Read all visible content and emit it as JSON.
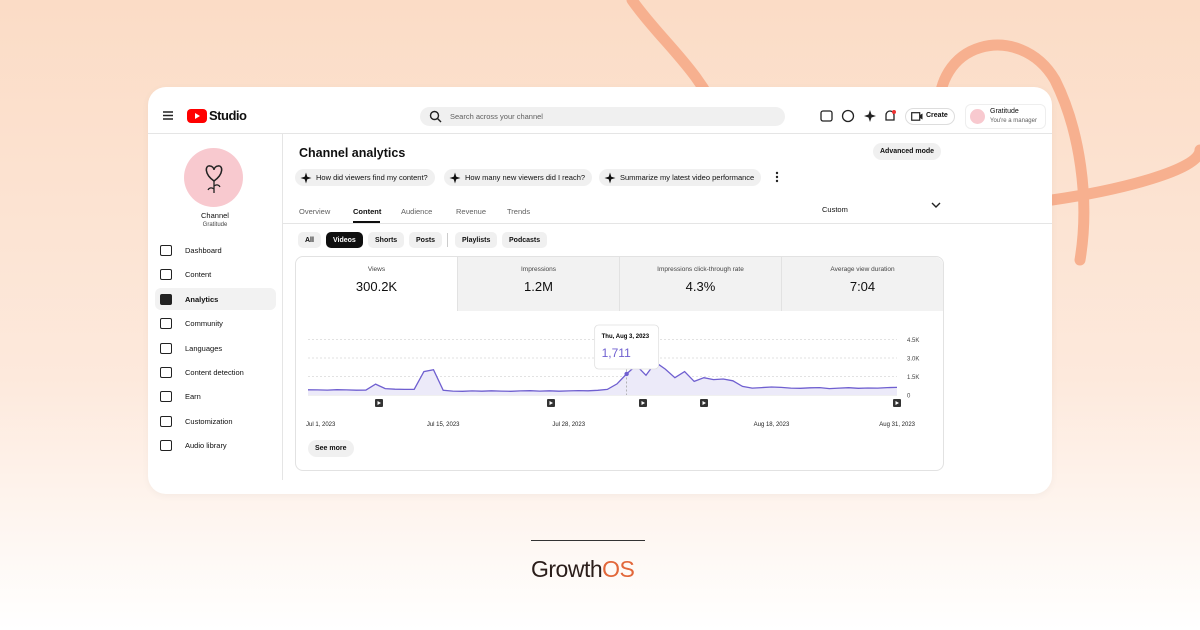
{
  "header": {
    "logo": "Studio",
    "search_placeholder": "Search across your channel",
    "create": "Create",
    "account_name": "Gratitude",
    "account_role": "You're a manager"
  },
  "sidebar": {
    "channel_label": "Channel",
    "channel_name": "Gratitude",
    "nav": [
      "Dashboard",
      "Content",
      "Analytics",
      "Community",
      "Languages",
      "Content detection",
      "Earn",
      "Customization",
      "Audio library"
    ]
  },
  "main": {
    "title": "Channel analytics",
    "advanced_mode": "Advanced mode",
    "prompts": [
      "How did viewers find my content?",
      "How many new viewers did I reach?",
      "Summarize my latest video performance"
    ],
    "tabs": [
      "Overview",
      "Content",
      "Audience",
      "Revenue",
      "Trends"
    ],
    "period": "Custom",
    "filters": [
      "All",
      "Videos",
      "Shorts",
      "Posts"
    ],
    "filters_more": [
      "Playlists",
      "Podcasts"
    ],
    "metrics": [
      {
        "label": "Views",
        "value": "300.2K"
      },
      {
        "label": "Impressions",
        "value": "1.2M"
      },
      {
        "label": "Impressions click-through rate",
        "value": "4.3%"
      },
      {
        "label": "Average view duration",
        "value": "7:04"
      }
    ],
    "see_more": "See more"
  },
  "chart_data": {
    "type": "line",
    "categories": [
      "Jul 1, 2023",
      null,
      null,
      null,
      null,
      null,
      null,
      null,
      null,
      null,
      null,
      null,
      null,
      null,
      "Jul 15, 2023",
      null,
      null,
      null,
      null,
      null,
      null,
      null,
      null,
      null,
      null,
      null,
      null,
      "Jul 28, 2023",
      null,
      null,
      null,
      null,
      null,
      null,
      null,
      null,
      null,
      null,
      null,
      null,
      null,
      null,
      null,
      null,
      null,
      null,
      null,
      null,
      "Aug 18, 2023",
      null,
      null,
      null,
      null,
      null,
      null,
      null,
      null,
      null,
      null,
      null,
      null,
      "Aug 31, 2023"
    ],
    "series": [
      {
        "name": "Views",
        "color": "#6f5fd0",
        "values": [
          420,
          410,
          400,
          430,
          410,
          390,
          400,
          880,
          520,
          470,
          450,
          460,
          1900,
          2050,
          380,
          320,
          300,
          330,
          310,
          340,
          320,
          300,
          330,
          350,
          320,
          340,
          310,
          330,
          360,
          340,
          380,
          450,
          900,
          1711,
          2400,
          1600,
          2650,
          2100,
          1400,
          1900,
          1100,
          1400,
          1250,
          1300,
          1150,
          700,
          560,
          600,
          650,
          620,
          560,
          540,
          580,
          600,
          520,
          560,
          590,
          540,
          570,
          560,
          600,
          620
        ]
      }
    ],
    "ylim": [
      0,
      4500
    ],
    "yticks": [
      0,
      {
        "value": 1500,
        "label": "1.5K"
      },
      {
        "value": 3000,
        "label": "3.0K"
      },
      {
        "value": 4500,
        "label": "4.5K"
      }
    ],
    "grid": true,
    "tooltip": {
      "title": "Thu, Aug 3, 2023",
      "value": 1711,
      "value_label": "1,711"
    }
  },
  "brand": [
    "Growth",
    "OS"
  ]
}
